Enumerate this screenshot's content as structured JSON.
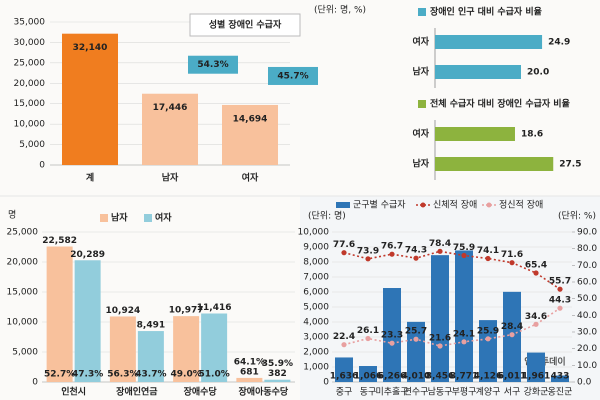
{
  "chart_data": [
    {
      "type": "bar",
      "title": "성별 장애인 수급자",
      "unit": "(단위: 명, %)",
      "categories": [
        "계",
        "남자",
        "여자"
      ],
      "values": [
        32140,
        17446,
        14694
      ],
      "value_labels": [
        "32,140",
        "17,446",
        "14,694"
      ],
      "colors": [
        "#f07d1f",
        "#f8c19c",
        "#f8c19c"
      ],
      "value_label_colors": [
        "#ffffff",
        "#222222",
        "#222222"
      ],
      "shares": [
        null,
        54.3,
        45.7
      ],
      "share_labels": [
        null,
        "54.3%",
        "45.7%"
      ],
      "ylim": [
        0,
        35000
      ],
      "yticks": [
        0,
        {
          "value": 5000,
          "label": "5,000"
        },
        {
          "value": 10000,
          "label": "10,000"
        },
        {
          "value": 15000,
          "label": "15,000"
        },
        {
          "value": 20000,
          "label": "20,000"
        },
        {
          "value": 25000,
          "label": "25,000"
        },
        {
          "value": 30000,
          "label": "30,000"
        },
        {
          "value": 35000,
          "label": "35,000"
        }
      ],
      "grid": true
    },
    {
      "type": "hbar",
      "title": "장애인 인구 대비 수급자 비율",
      "color": "#4bacc6",
      "categories": [
        "여자",
        "남자"
      ],
      "values": [
        24.9,
        20.0
      ],
      "value_labels": [
        "24.9",
        "20.0"
      ]
    },
    {
      "type": "hbar",
      "title": "전체 수급자 대비 장애인 수급자 비율",
      "color": "#8db33e",
      "categories": [
        "여자",
        "남자"
      ],
      "values": [
        18.6,
        27.5
      ],
      "value_labels": [
        "18.6",
        "27.5"
      ]
    },
    {
      "type": "grouped_bar",
      "unit": "명",
      "categories": [
        "인천시",
        "장애인연금",
        "장애수당",
        "장애아동수당"
      ],
      "series": [
        {
          "name": "남자",
          "color": "#f8c19c",
          "values": [
            22582,
            10924,
            10977,
            681
          ],
          "value_labels": [
            "22,582",
            "10,924",
            "10,977",
            "681"
          ],
          "shares": [
            52.7,
            56.3,
            49.0,
            64.1
          ],
          "share_labels": [
            "52.7%",
            "56.3%",
            "49.0%",
            "64.1%"
          ]
        },
        {
          "name": "여자",
          "color": "#92cddc",
          "values": [
            20289,
            8491,
            11416,
            382
          ],
          "value_labels": [
            "20,289",
            "8,491",
            "11,416",
            "382"
          ],
          "shares": [
            47.3,
            43.7,
            51.0,
            35.9
          ],
          "share_labels": [
            "47.3%",
            "43.7%",
            "51.0%",
            "35.9%"
          ]
        }
      ],
      "ylim": [
        0,
        25000
      ],
      "yticks": [
        0,
        {
          "value": 5000,
          "label": "5,000"
        },
        {
          "value": 10000,
          "label": "10,000"
        },
        {
          "value": 15000,
          "label": "15,000"
        },
        {
          "value": 20000,
          "label": "20,000"
        },
        {
          "value": 25000,
          "label": "25,000"
        }
      ],
      "grid": true
    },
    {
      "type": "combo",
      "unit_left": "(단위: 명)",
      "unit_right": "(단위: %)",
      "categories": [
        "중구",
        "동구",
        "미추홀구",
        "연수구",
        "남동구",
        "부평구",
        "계양구",
        "서구",
        "강화군",
        "옹진군"
      ],
      "series": [
        {
          "name": "군구별 수급자",
          "type": "bar",
          "color": "#2e75b6",
          "values": [
            1636,
            1066,
            6266,
            4010,
            8456,
            8771,
            4126,
            6011,
            1961,
            433
          ],
          "value_labels": [
            "1,636",
            "1,066",
            "6,266",
            "4,010",
            "8,456",
            "8,771",
            "4,126",
            "6,011",
            "1,961",
            "433"
          ]
        },
        {
          "name": "신체적 장애",
          "type": "line",
          "axis": "y2",
          "color": "#c0392b",
          "values": [
            77.6,
            73.9,
            76.7,
            74.3,
            78.4,
            75.9,
            74.1,
            71.6,
            65.4,
            55.7
          ]
        },
        {
          "name": "정신적 장애",
          "type": "line",
          "axis": "y2",
          "color": "#e8a0a0",
          "values": [
            22.4,
            26.1,
            23.3,
            25.7,
            21.6,
            24.1,
            25.9,
            28.4,
            34.6,
            44.3
          ]
        }
      ],
      "ylim": [
        0,
        10000
      ],
      "yticks": [
        0,
        {
          "value": 1000,
          "label": "1,000"
        },
        {
          "value": 2000,
          "label": "2,000"
        },
        {
          "value": 3000,
          "label": "3,000"
        },
        {
          "value": 4000,
          "label": "4,000"
        },
        {
          "value": 5000,
          "label": "5,000"
        },
        {
          "value": 6000,
          "label": "6,000"
        },
        {
          "value": 7000,
          "label": "7,000"
        },
        {
          "value": 8000,
          "label": "8,000"
        },
        {
          "value": 9000,
          "label": "9,000"
        },
        {
          "value": 10000,
          "label": "10,000"
        }
      ],
      "y2lim": [
        0,
        90
      ],
      "y2ticks": [
        {
          "value": 0,
          "label": "0.0"
        },
        {
          "value": 10,
          "label": "10.0"
        },
        {
          "value": 20,
          "label": "20.0"
        },
        {
          "value": 30,
          "label": "30.0"
        },
        {
          "value": 40,
          "label": "40.0"
        },
        {
          "value": 50,
          "label": "50.0"
        },
        {
          "value": 60,
          "label": "60.0"
        },
        {
          "value": 70,
          "label": "70.0"
        },
        {
          "value": 80,
          "label": "80.0"
        },
        {
          "value": 90,
          "label": "90.0"
        }
      ],
      "grid": true,
      "watermark": "인천투데이"
    }
  ]
}
